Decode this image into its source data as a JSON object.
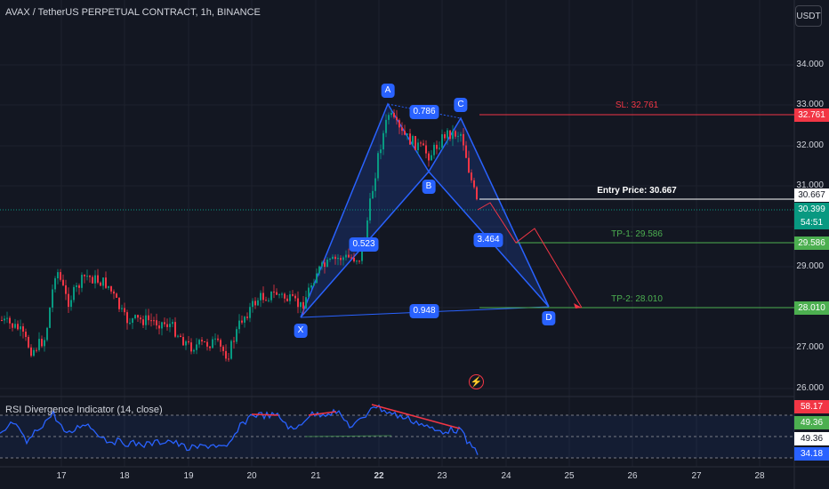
{
  "header": {
    "title": "AVAX / TetherUS PERPETUAL CONTRACT, 1h, BINANCE",
    "currency_button": "USDT"
  },
  "rsi_panel": {
    "title": "RSI Divergence Indicator (14, close)",
    "tags": [
      "58.17",
      "49.36",
      "49.36",
      "34.18"
    ]
  },
  "price_axis": {
    "labels": [
      "34.000",
      "33.000",
      "32.000",
      "31.000",
      "29.000",
      "27.000",
      "26.000"
    ]
  },
  "price_tags": {
    "sl": "32.761",
    "entry": "30.667",
    "current": "30.399",
    "countdown": "54:51",
    "tp1": "29.586",
    "tp2": "28.010"
  },
  "date_axis": {
    "labels": [
      "17",
      "18",
      "19",
      "20",
      "21",
      "22",
      "23",
      "24",
      "25",
      "26",
      "27",
      "28"
    ]
  },
  "pattern": {
    "points": [
      "X",
      "A",
      "B",
      "C",
      "D"
    ],
    "ratios": [
      "0.786",
      "0.523",
      "3.464",
      "0.948"
    ]
  },
  "levels": {
    "sl": "SL: 32.761",
    "entry": "Entry Price: 30.667",
    "tp1": "TP-1: 29.586",
    "tp2": "TP-2: 28.010"
  },
  "colors": {
    "background": "#131722",
    "up": "#089981",
    "down": "#f23645",
    "pattern": "#2962ff",
    "tp": "#4caf50",
    "rsi": "#2962ff"
  },
  "icons": {
    "flash": "lightning-icon"
  }
}
